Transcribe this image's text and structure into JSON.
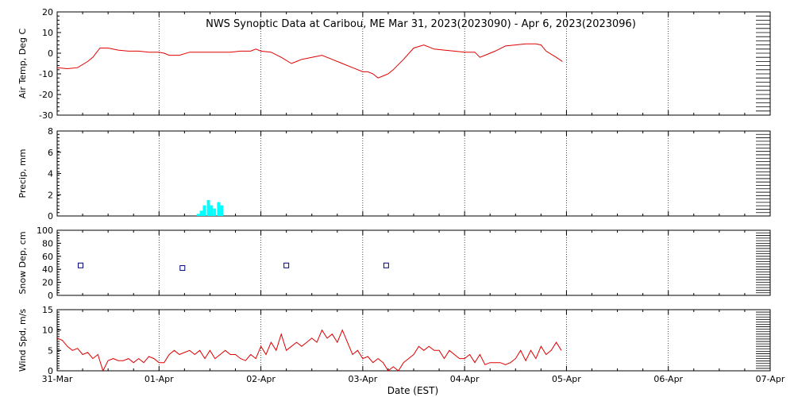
{
  "title": "NWS Synoptic Data at Caribou, ME   Mar 31, 2023(2023090) - Apr  6, 2023(2023096)",
  "xlabel": "Date (EST)",
  "x_tick_labels": [
    "31-Mar",
    "01-Apr",
    "02-Apr",
    "03-Apr",
    "04-Apr",
    "05-Apr",
    "06-Apr",
    "07-Apr"
  ],
  "colors": {
    "temp_line": "#e00000",
    "precip_bars": "#00ffff",
    "snow_marker": "#000080",
    "wind_line": "#e00000",
    "grid": "#000000"
  },
  "chart_data": [
    {
      "type": "line",
      "ylabel": "Air Temp, Deg C",
      "ylim": [
        -30,
        20
      ],
      "y_ticks": [
        -30,
        -20,
        -10,
        0,
        10,
        20
      ],
      "x_range_days": [
        0,
        7
      ],
      "series": [
        {
          "x": [
            0,
            0.1,
            0.2,
            0.3,
            0.35,
            0.42,
            0.5,
            0.6,
            0.7,
            0.8,
            0.9,
            1.0,
            1.05,
            1.1,
            1.15,
            1.2,
            1.3,
            1.4,
            1.5,
            1.6,
            1.7,
            1.8,
            1.9,
            1.95,
            2.0,
            2.1,
            2.2,
            2.3,
            2.35,
            2.4,
            2.5,
            2.6,
            2.7,
            2.8,
            2.9,
            3.0,
            3.05,
            3.1,
            3.15,
            3.2,
            3.25,
            3.3,
            3.4,
            3.5,
            3.6,
            3.65,
            3.7,
            3.8,
            3.9,
            4.0,
            4.1,
            4.15,
            4.2,
            4.3,
            4.4,
            4.5,
            4.6,
            4.7,
            4.75,
            4.8,
            4.9,
            4.96
          ],
          "y": [
            -7,
            -7.5,
            -7,
            -4,
            -2,
            2.5,
            2.5,
            1.5,
            1,
            1,
            0.5,
            0.5,
            0,
            -1,
            -1,
            -1,
            0.5,
            0.5,
            0.5,
            0.5,
            0.5,
            1,
            1,
            2,
            1,
            0.5,
            -2,
            -5,
            -4,
            -3,
            -2,
            -1,
            -3,
            -5,
            -7,
            -9,
            -9,
            -10,
            -12,
            -11,
            -10,
            -8,
            -3,
            2.5,
            4,
            3,
            2,
            1.5,
            1,
            0.5,
            0.5,
            -2,
            -1,
            1,
            3.5,
            4,
            4.5,
            4.5,
            4,
            1,
            -2,
            -4
          ]
        }
      ]
    },
    {
      "type": "bar",
      "ylabel": "Precip, mm",
      "ylim": [
        0,
        8
      ],
      "y_ticks": [
        0,
        2,
        4,
        6,
        8
      ],
      "x_range_days": [
        0,
        7
      ],
      "series": [
        {
          "x_start": [
            1.37,
            1.4,
            1.43,
            1.47,
            1.5,
            1.53,
            1.57,
            1.6
          ],
          "bar_width_days": 0.03,
          "values": [
            0.2,
            0.5,
            1.0,
            1.5,
            1.0,
            0.7,
            1.3,
            1.0
          ]
        }
      ]
    },
    {
      "type": "scatter",
      "ylabel": "Snow Dep, cm",
      "ylim": [
        0,
        100
      ],
      "y_ticks": [
        0,
        20,
        40,
        60,
        80,
        100
      ],
      "x_range_days": [
        0,
        7
      ],
      "series": [
        {
          "x": [
            0.23,
            1.23,
            2.25,
            3.23
          ],
          "y": [
            46,
            42,
            46,
            46
          ]
        }
      ]
    },
    {
      "type": "line",
      "ylabel": "Wind Spd, m/s",
      "ylim": [
        0,
        15
      ],
      "y_ticks": [
        0,
        5,
        10,
        15
      ],
      "x_range_days": [
        0,
        7
      ],
      "series": [
        {
          "x": [
            0,
            0.05,
            0.1,
            0.15,
            0.2,
            0.25,
            0.3,
            0.35,
            0.4,
            0.45,
            0.5,
            0.55,
            0.6,
            0.65,
            0.7,
            0.75,
            0.8,
            0.85,
            0.9,
            0.95,
            1.0,
            1.05,
            1.1,
            1.15,
            1.2,
            1.25,
            1.3,
            1.35,
            1.4,
            1.45,
            1.5,
            1.55,
            1.6,
            1.65,
            1.7,
            1.75,
            1.8,
            1.85,
            1.9,
            1.95,
            2.0,
            2.05,
            2.1,
            2.15,
            2.2,
            2.25,
            2.3,
            2.35,
            2.4,
            2.45,
            2.5,
            2.55,
            2.6,
            2.65,
            2.7,
            2.75,
            2.8,
            2.85,
            2.9,
            2.95,
            3.0,
            3.05,
            3.1,
            3.15,
            3.2,
            3.25,
            3.3,
            3.35,
            3.4,
            3.45,
            3.5,
            3.55,
            3.6,
            3.65,
            3.7,
            3.75,
            3.8,
            3.85,
            3.9,
            3.95,
            4.0,
            4.05,
            4.1,
            4.15,
            4.2,
            4.25,
            4.3,
            4.35,
            4.4,
            4.45,
            4.5,
            4.55,
            4.6,
            4.65,
            4.7,
            4.75,
            4.8,
            4.85,
            4.9,
            4.95
          ],
          "y": [
            8,
            7.5,
            6,
            5,
            5.5,
            4,
            4.5,
            3,
            4,
            0,
            2.5,
            3,
            2.5,
            2.5,
            3,
            2,
            3,
            2,
            3.5,
            3,
            2,
            2,
            4,
            5,
            4,
            4.5,
            5,
            4,
            5,
            3,
            5,
            3,
            4,
            5,
            4,
            4,
            3,
            2.5,
            4,
            3,
            6,
            4,
            7,
            5,
            9,
            5,
            6,
            7,
            6,
            7,
            8,
            7,
            10,
            8,
            9,
            7,
            10,
            7,
            4,
            5,
            3,
            3.5,
            2,
            3,
            2,
            0,
            1,
            0,
            2,
            3,
            4,
            6,
            5,
            6,
            5,
            5,
            3,
            5,
            4,
            3,
            3,
            4,
            2,
            4,
            1.5,
            2,
            2,
            2,
            1.5,
            2,
            3,
            5,
            2.5,
            5,
            3,
            6,
            4,
            5,
            7,
            5
          ]
        }
      ]
    }
  ]
}
